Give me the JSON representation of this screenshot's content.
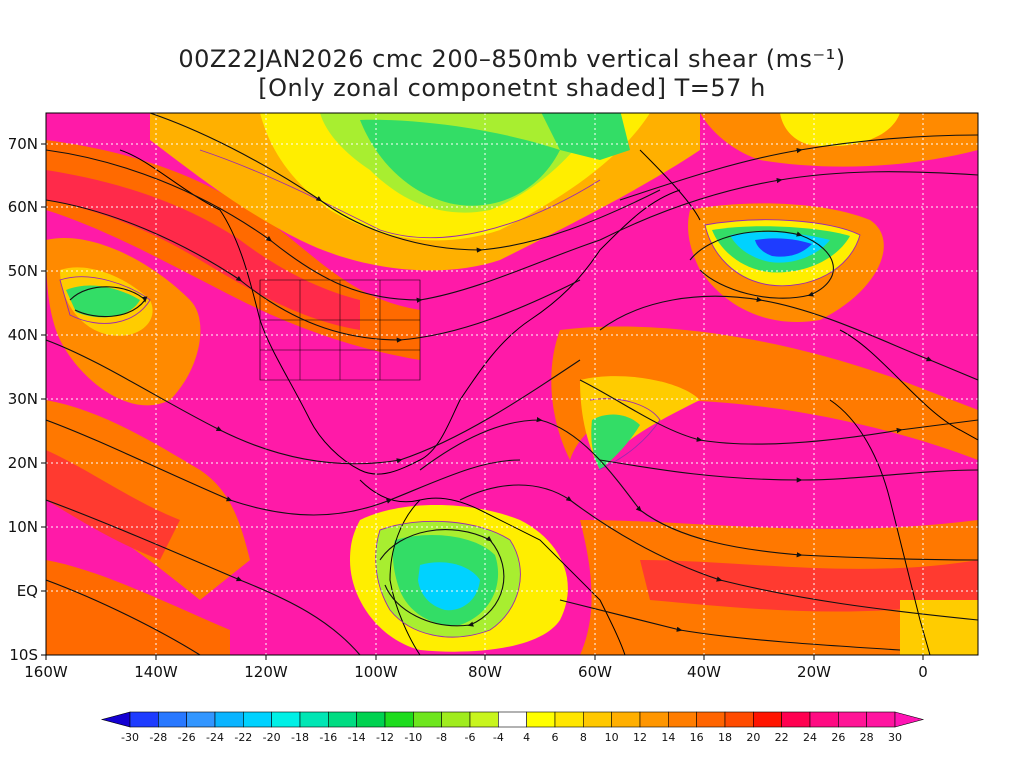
{
  "title": {
    "line1": "00Z22JAN2026 cmc 200–850mb vertical shear (ms⁻¹)",
    "line2": "[Only zonal componetnt shaded] T=57 h"
  },
  "map": {
    "lat_labels": [
      "70N",
      "60N",
      "50N",
      "40N",
      "30N",
      "20N",
      "10N",
      "EQ",
      "10S"
    ],
    "lon_labels": [
      "160W",
      "140W",
      "120W",
      "100W",
      "80W",
      "60W",
      "40W",
      "20W",
      "0"
    ],
    "lon_range": [
      -160,
      10
    ],
    "lat_range": [
      -10,
      75
    ]
  },
  "colorbar": {
    "labels": [
      "-30",
      "-28",
      "-26",
      "-24",
      "-22",
      "-20",
      "-18",
      "-16",
      "-14",
      "-12",
      "-10",
      "-8",
      "-6",
      "-4",
      "4",
      "6",
      "8",
      "10",
      "12",
      "14",
      "16",
      "18",
      "20",
      "22",
      "24",
      "26",
      "28",
      "30"
    ],
    "colors": [
      "#1400d2",
      "#1e3cff",
      "#2878ff",
      "#3296ff",
      "#0ab4ff",
      "#00d2ff",
      "#00f0e6",
      "#00e6b4",
      "#00dc82",
      "#00d250",
      "#1edc1e",
      "#6ee61e",
      "#a0ec1e",
      "#c8f51e",
      "#ffffff",
      "#ffff00",
      "#ffe600",
      "#ffc800",
      "#ffaf00",
      "#ff9600",
      "#ff7d00",
      "#ff6400",
      "#ff4b00",
      "#ff1400",
      "#ff0050",
      "#ff0a82",
      "#ff1496",
      "#ff14a0",
      "#ff14b4"
    ]
  }
}
